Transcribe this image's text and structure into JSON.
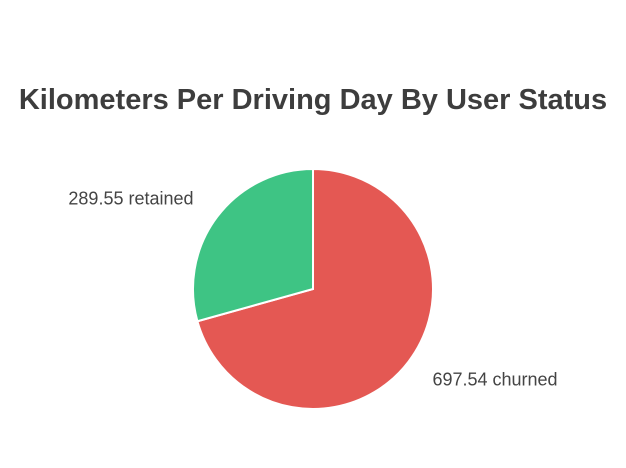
{
  "chart_data": {
    "type": "pie",
    "title": "Kilometers Per Driving Day By User Status",
    "slices": [
      {
        "label": "churned",
        "value": 697.54,
        "display": "697.54 churned",
        "color": "#e45853"
      },
      {
        "label": "retained",
        "value": 289.55,
        "display": "289.55 retained",
        "color": "#3ec484"
      }
    ],
    "legend": "none"
  }
}
